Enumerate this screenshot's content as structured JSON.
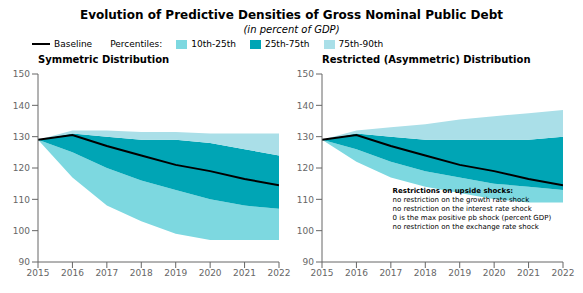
{
  "title": "Evolution of Predictive Densities of Gross Nominal Public Debt",
  "subtitle": "(in percent of GDP)",
  "legend_title": "Percentiles:",
  "legend": "top",
  "chart_data": [
    {
      "type": "area",
      "title": "Symmetric Distribution",
      "x": [
        2015,
        2016,
        2017,
        2018,
        2019,
        2020,
        2021,
        2022
      ],
      "xlim": [
        2015,
        2022
      ],
      "xticks": [
        2015,
        2016,
        2017,
        2018,
        2019,
        2020,
        2021,
        2022
      ],
      "ylim": [
        90,
        150
      ],
      "yticks": [
        90,
        100,
        110,
        120,
        130,
        140,
        150
      ],
      "grid": false,
      "series": [
        {
          "name": "Baseline",
          "type": "line",
          "color": "#000000",
          "values": [
            129,
            130.5,
            127,
            124,
            121,
            119,
            116.5,
            114.5
          ]
        },
        {
          "name": "10th-25th",
          "type": "area",
          "color": "#7dd8e0",
          "values": [
            [
              129,
              129
            ],
            [
              117,
              125
            ],
            [
              108,
              120
            ],
            [
              103,
              116
            ],
            [
              99,
              113
            ],
            [
              97,
              110
            ],
            [
              97,
              108
            ],
            [
              97,
              107
            ]
          ]
        },
        {
          "name": "25th-75th",
          "type": "area",
          "color": "#00a5b5",
          "values": [
            [
              129,
              129
            ],
            [
              125,
              131
            ],
            [
              120,
              130
            ],
            [
              116,
              129
            ],
            [
              113,
              129
            ],
            [
              110,
              128
            ],
            [
              108,
              126
            ],
            [
              107,
              124
            ]
          ]
        },
        {
          "name": "75th-90th",
          "type": "area",
          "color": "#aadfe8",
          "values": [
            [
              129,
              129
            ],
            [
              131,
              132
            ],
            [
              130,
              132
            ],
            [
              129,
              131.5
            ],
            [
              129,
              131.5
            ],
            [
              128,
              131
            ],
            [
              126,
              131
            ],
            [
              124,
              131
            ]
          ]
        }
      ]
    },
    {
      "type": "area",
      "title": "Restricted (Asymmetric) Distribution",
      "x": [
        2015,
        2016,
        2017,
        2018,
        2019,
        2020,
        2021,
        2022
      ],
      "xlim": [
        2015,
        2022
      ],
      "xticks": [
        2015,
        2016,
        2017,
        2018,
        2019,
        2020,
        2021,
        2022
      ],
      "ylim": [
        90,
        150
      ],
      "yticks": [
        90,
        100,
        110,
        120,
        130,
        140,
        150
      ],
      "grid": false,
      "annotation": {
        "title": "Restrictions on upside shocks:",
        "lines": [
          "no restriction on the growth rate shock",
          "no restriction on the interest rate shock",
          "0 is the max positive pb shock (percent GDP)",
          "no restriction on the exchange rate shock"
        ]
      },
      "series": [
        {
          "name": "Baseline",
          "type": "line",
          "color": "#000000",
          "values": [
            129,
            130.5,
            127,
            124,
            121,
            119,
            116.5,
            114.5
          ]
        },
        {
          "name": "10th-25th",
          "type": "area",
          "color": "#7dd8e0",
          "values": [
            [
              129,
              129
            ],
            [
              122,
              126
            ],
            [
              117,
              122
            ],
            [
              114,
              119
            ],
            [
              112,
              117
            ],
            [
              110,
              115
            ],
            [
              109,
              114
            ],
            [
              109,
              113
            ]
          ]
        },
        {
          "name": "25th-75th",
          "type": "area",
          "color": "#00a5b5",
          "values": [
            [
              129,
              129
            ],
            [
              126,
              131
            ],
            [
              122,
              130
            ],
            [
              119,
              129
            ],
            [
              117,
              129
            ],
            [
              115,
              129
            ],
            [
              114,
              129
            ],
            [
              113,
              130
            ]
          ]
        },
        {
          "name": "75th-90th",
          "type": "area",
          "color": "#aadfe8",
          "values": [
            [
              129,
              129
            ],
            [
              131,
              132
            ],
            [
              130,
              133
            ],
            [
              129,
              134
            ],
            [
              129,
              135.5
            ],
            [
              129,
              136.5
            ],
            [
              129,
              137.5
            ],
            [
              130,
              138.5
            ]
          ]
        }
      ]
    }
  ]
}
